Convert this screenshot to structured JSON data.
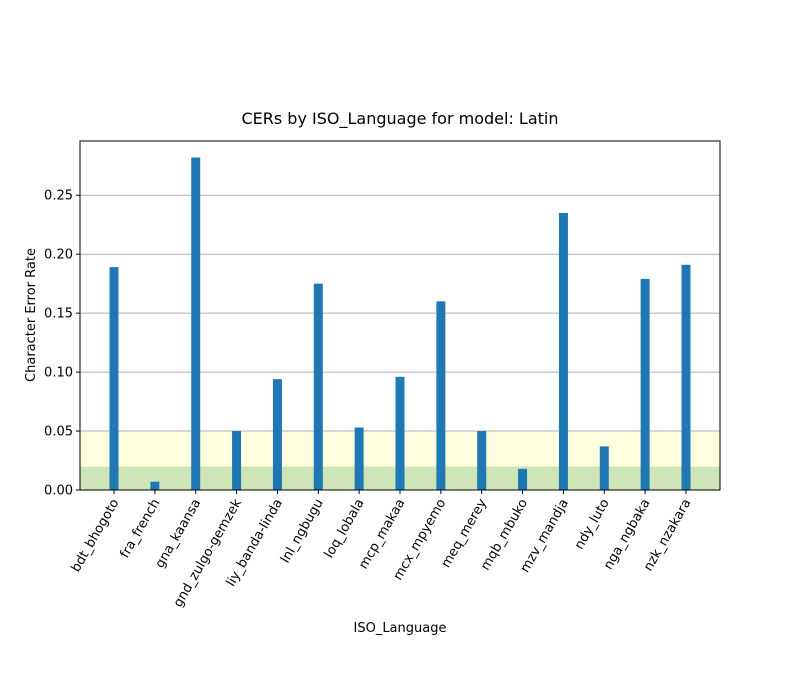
{
  "chart_data": {
    "type": "bar",
    "title": "CERs by ISO_Language for model: Latin",
    "xlabel": "ISO_Language",
    "ylabel": "Character Error Rate",
    "categories": [
      "bdt_bhogoto",
      "fra_french",
      "gna_kaansa",
      "gnd_zulgo-gemzek",
      "liy_banda-linda",
      "lnl_ngbugu",
      "loq_lobala",
      "mcp_makaa",
      "mcx_mpyemo",
      "meq_merey",
      "mqb_mbuko",
      "mzv_mandja",
      "ndy_luto",
      "nga_ngbaka",
      "nzk_nzakara"
    ],
    "values": [
      0.189,
      0.007,
      0.282,
      0.05,
      0.094,
      0.175,
      0.053,
      0.096,
      0.16,
      0.05,
      0.018,
      0.235,
      0.037,
      0.179,
      0.191
    ],
    "ylim": [
      0,
      0.296
    ],
    "yticks": [
      "0.00",
      "0.05",
      "0.10",
      "0.15",
      "0.20",
      "0.25"
    ],
    "bands": [
      {
        "from": 0,
        "to": 0.02,
        "color": "#cde5b7"
      },
      {
        "from": 0.02,
        "to": 0.05,
        "color": "#ffffe0"
      }
    ],
    "grid": "horizontal",
    "bar_color": "#1f77b4",
    "grid_color": "#b0b0b0"
  }
}
